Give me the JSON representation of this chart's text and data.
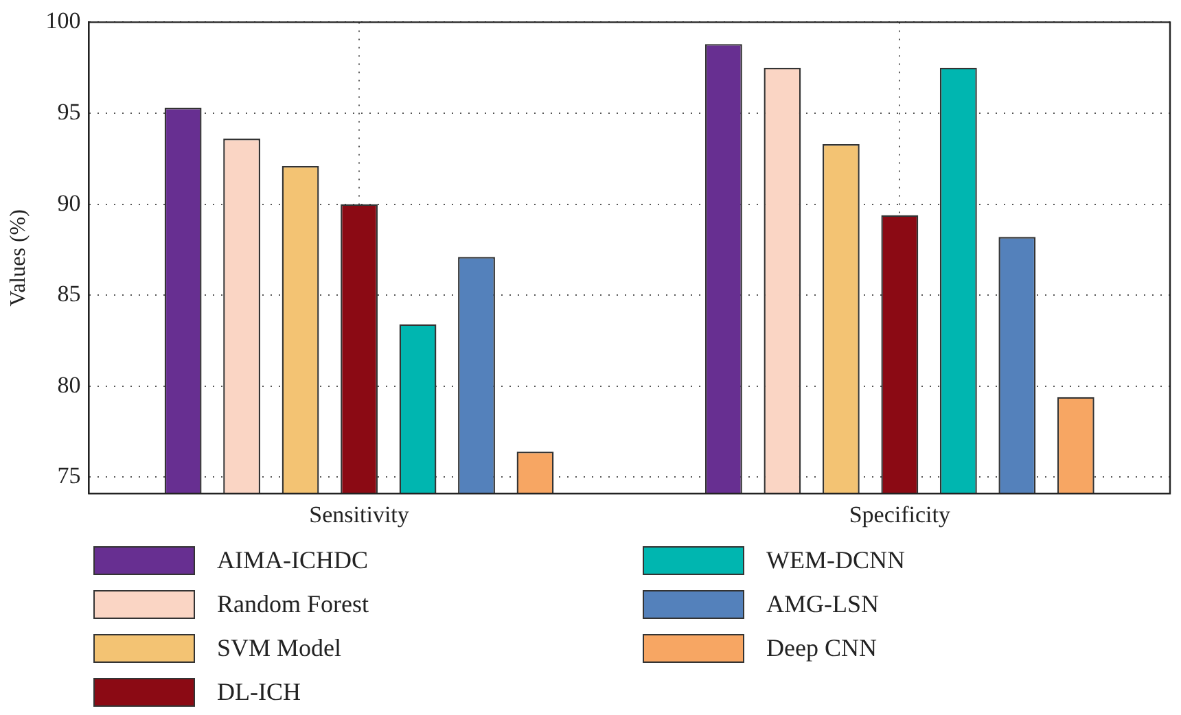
{
  "chart_data": {
    "type": "bar",
    "ylabel": "Values (%)",
    "categories": [
      "Sensitivity",
      "Specificity"
    ],
    "series": [
      {
        "name": "AIMA-ICHDC",
        "color": "#672f91",
        "values": [
          95.3,
          98.8
        ]
      },
      {
        "name": "Random Forest",
        "color": "#fad5c4",
        "values": [
          93.6,
          97.5
        ]
      },
      {
        "name": "SVM Model",
        "color": "#f3c373",
        "values": [
          92.1,
          93.3
        ]
      },
      {
        "name": "DL-ICH",
        "color": "#8b0a14",
        "values": [
          90.0,
          89.4
        ]
      },
      {
        "name": "WEM-DCNN",
        "color": "#00b6b0",
        "values": [
          83.4,
          97.5
        ]
      },
      {
        "name": "AMG-LSN",
        "color": "#5481bb",
        "values": [
          87.1,
          88.2
        ]
      },
      {
        "name": "Deep CNN",
        "color": "#f7a663",
        "values": [
          76.4,
          79.4
        ]
      }
    ],
    "ylim": [
      74.1,
      100
    ],
    "yticks": [
      75,
      80,
      85,
      90,
      95,
      100
    ],
    "grid": true,
    "legend": "bottom"
  }
}
